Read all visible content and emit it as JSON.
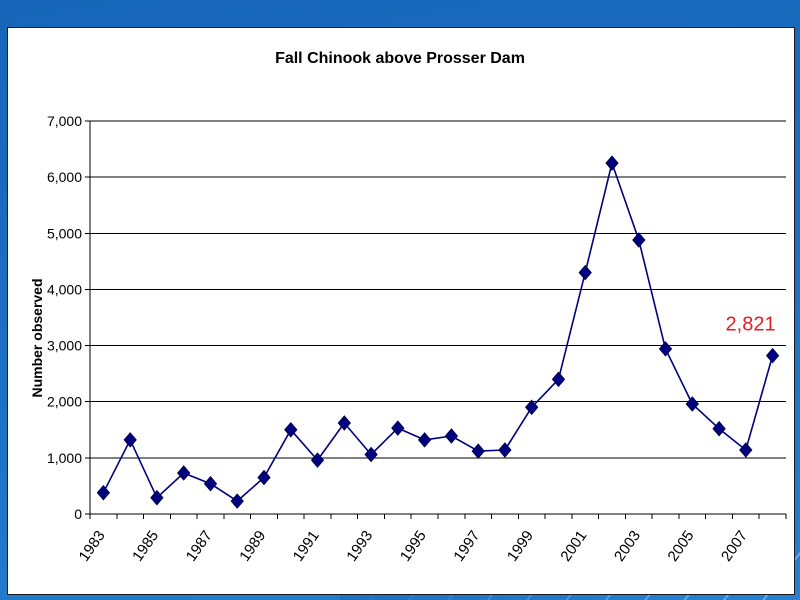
{
  "chart_data": {
    "type": "line",
    "marker": "diamond",
    "title": "Fall Chinook above Prosser Dam",
    "ylabel": "Number observed",
    "x": [
      1983,
      1984,
      1985,
      1986,
      1987,
      1988,
      1989,
      1990,
      1991,
      1992,
      1993,
      1994,
      1995,
      1996,
      1997,
      1998,
      1999,
      2000,
      2001,
      2002,
      2003,
      2004,
      2005,
      2006,
      2007,
      2008
    ],
    "values": [
      380,
      1320,
      290,
      730,
      540,
      230,
      650,
      1500,
      960,
      1620,
      1060,
      1530,
      1320,
      1390,
      1120,
      1140,
      1900,
      2400,
      4300,
      6250,
      4880,
      2940,
      1960,
      1520,
      1140,
      2821
    ],
    "x_tick_labels": [
      "1983",
      "1985",
      "1987",
      "1989",
      "1991",
      "1993",
      "1995",
      "1997",
      "1999",
      "2001",
      "2003",
      "2005",
      "2007"
    ],
    "xlim": [
      1983,
      2008
    ],
    "ylim": [
      0,
      7000
    ],
    "y_ticks": [
      0,
      1000,
      2000,
      3000,
      4000,
      5000,
      6000,
      7000
    ],
    "y_tick_labels": [
      "0",
      "1,000",
      "2,000",
      "3,000",
      "4,000",
      "5,000",
      "6,000",
      "7,000"
    ],
    "grid": {
      "y": true,
      "x": false
    },
    "annotations": [
      {
        "text": "2,821",
        "x": 2008,
        "y": 2821
      }
    ]
  },
  "colors": {
    "line": "#000080",
    "marker": "#000080",
    "marker_outline": "#00004d",
    "gridline": "#000000",
    "annotation": "#e31e24"
  }
}
